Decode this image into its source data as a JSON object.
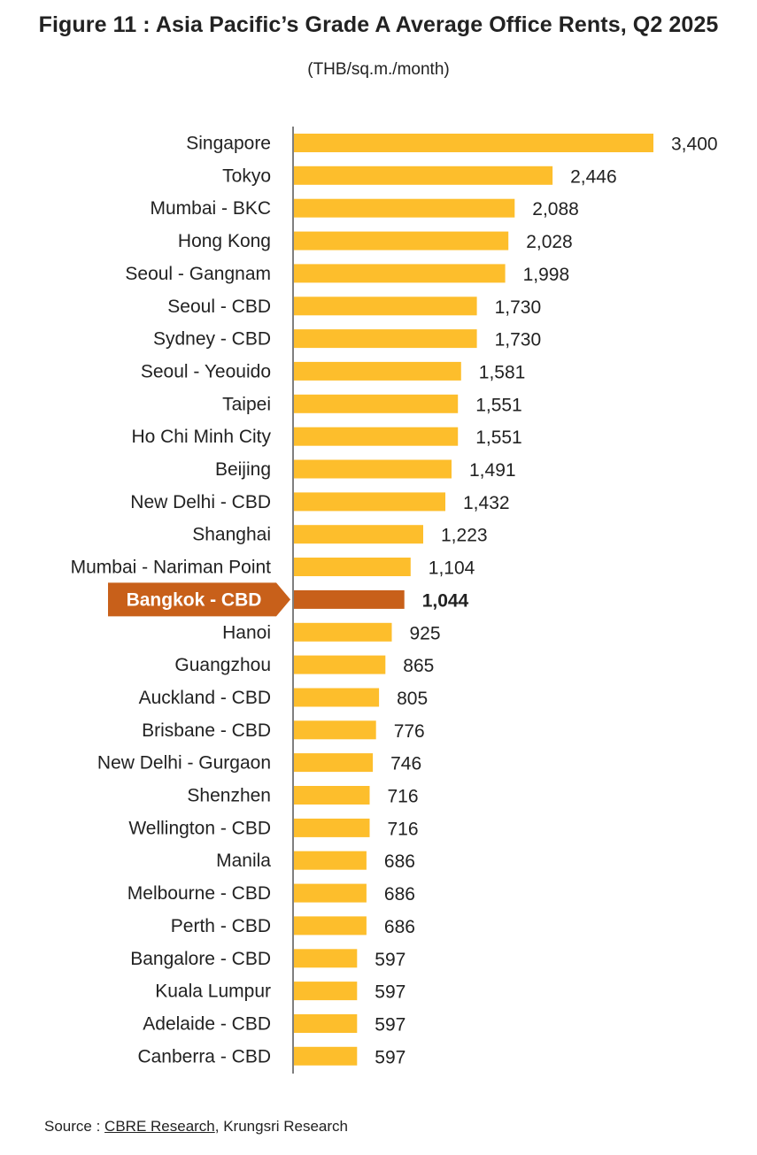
{
  "chart_data": {
    "type": "bar",
    "orientation": "horizontal",
    "title": "Figure 11 : Asia Pacific’s Grade A Average Office Rents, Q2 2025",
    "subtitle": "(THB/sq.m./month)",
    "highlight": "Bangkok - CBD",
    "categories": [
      "Singapore",
      "Tokyo",
      "Mumbai - BKC",
      "Hong Kong",
      "Seoul - Gangnam",
      "Seoul - CBD",
      "Sydney - CBD",
      "Seoul - Yeouido",
      "Taipei",
      "Ho Chi Minh City",
      "Beijing",
      "New Delhi - CBD",
      "Shanghai",
      "Mumbai - Nariman Point",
      "Bangkok - CBD",
      "Hanoi",
      "Guangzhou",
      "Auckland - CBD",
      "Brisbane - CBD",
      "New Delhi - Gurgaon",
      "Shenzhen",
      "Wellington - CBD",
      "Manila",
      "Melbourne - CBD",
      "Perth - CBD",
      "Bangalore - CBD",
      "Kuala Lumpur",
      "Adelaide - CBD",
      "Canberra - CBD"
    ],
    "values": [
      3400,
      2446,
      2088,
      2028,
      1998,
      1730,
      1730,
      1581,
      1551,
      1551,
      1491,
      1432,
      1223,
      1104,
      1044,
      925,
      865,
      805,
      776,
      746,
      716,
      716,
      686,
      686,
      686,
      597,
      597,
      597,
      597
    ],
    "value_labels": [
      "3,400",
      "2,446",
      "2,088",
      "2,028",
      "1,998",
      "1,730",
      "1,730",
      "1,581",
      "1,551",
      "1,551",
      "1,491",
      "1,432",
      "1,223",
      "1,104",
      "1,044",
      "925",
      "865",
      "805",
      "776",
      "746",
      "716",
      "716",
      "686",
      "686",
      "686",
      "597",
      "597",
      "597",
      "597"
    ],
    "xlim": [
      0,
      3400
    ],
    "colors": {
      "bar": "#FDBE2C",
      "highlight": "#C8601A",
      "highlight_text": "#ffffff",
      "axis": "#555555",
      "text": "#222222"
    }
  },
  "source": {
    "prefix": "Source : ",
    "link": "CBRE Research",
    "suffix": ", Krungsri Research"
  }
}
